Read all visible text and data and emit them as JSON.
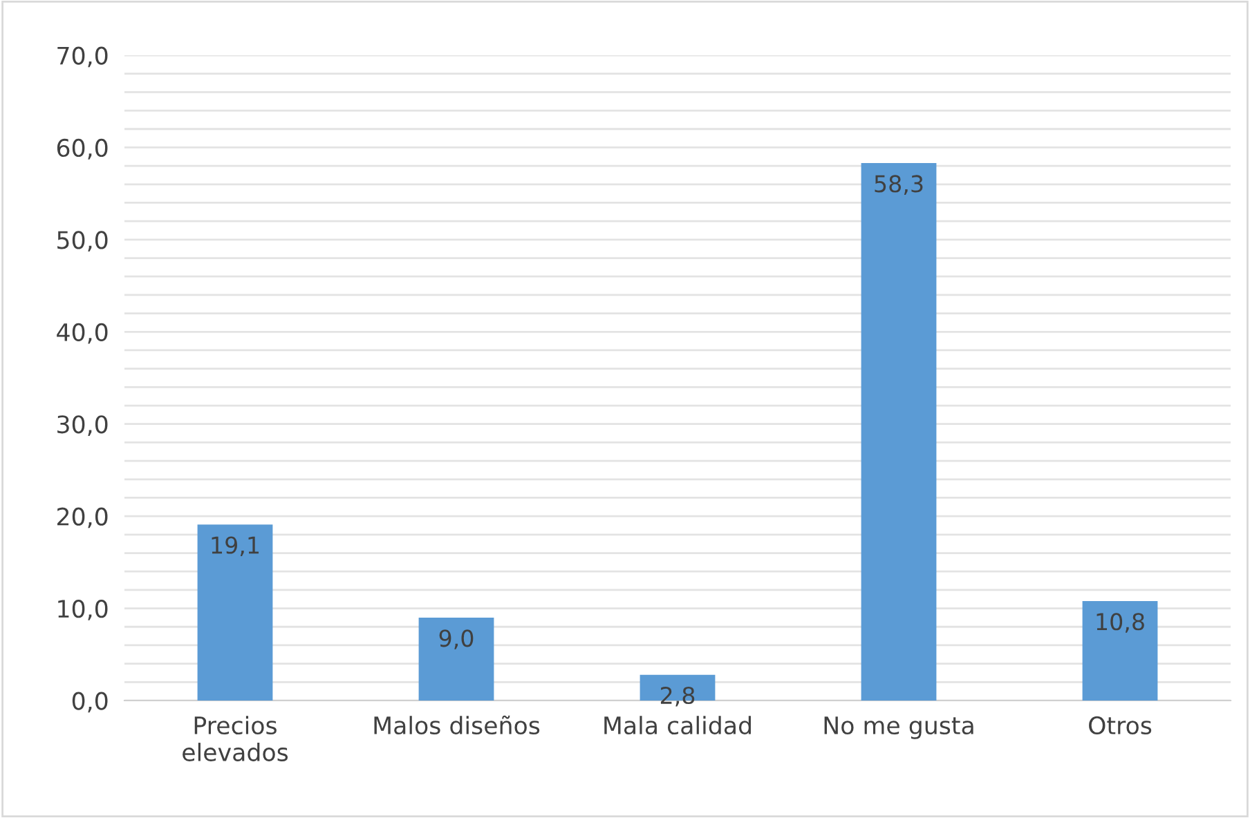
{
  "chart_data": {
    "type": "bar",
    "categories": [
      "Precios\nelevados",
      "Malos diseños",
      "Mala calidad",
      "No me gusta",
      "Otros"
    ],
    "values": [
      19.1,
      9.0,
      2.8,
      58.3,
      10.8
    ],
    "value_labels": [
      "19,1",
      "9,0",
      "2,8",
      "58,3",
      "10,8"
    ],
    "color": "#5b9bd5",
    "ylim": [
      0,
      70
    ],
    "yticks": [
      {
        "value": 0,
        "label": "0,0"
      },
      {
        "value": 2,
        "label": null
      },
      {
        "value": 4,
        "label": null
      },
      {
        "value": 6,
        "label": null
      },
      {
        "value": 8,
        "label": null
      },
      {
        "value": 10,
        "label": "10,0"
      },
      {
        "value": 12,
        "label": null
      },
      {
        "value": 14,
        "label": null
      },
      {
        "value": 16,
        "label": null
      },
      {
        "value": 18,
        "label": null
      },
      {
        "value": 20,
        "label": "20,0"
      },
      {
        "value": 22,
        "label": null
      },
      {
        "value": 24,
        "label": null
      },
      {
        "value": 26,
        "label": null
      },
      {
        "value": 28,
        "label": null
      },
      {
        "value": 30,
        "label": "30,0"
      },
      {
        "value": 32,
        "label": null
      },
      {
        "value": 34,
        "label": null
      },
      {
        "value": 36,
        "label": null
      },
      {
        "value": 38,
        "label": null
      },
      {
        "value": 40,
        "label": "40,0"
      },
      {
        "value": 42,
        "label": null
      },
      {
        "value": 44,
        "label": null
      },
      {
        "value": 46,
        "label": null
      },
      {
        "value": 48,
        "label": null
      },
      {
        "value": 50,
        "label": "50,0"
      },
      {
        "value": 52,
        "label": null
      },
      {
        "value": 54,
        "label": null
      },
      {
        "value": 56,
        "label": null
      },
      {
        "value": 58,
        "label": null
      },
      {
        "value": 60,
        "label": "60,0"
      },
      {
        "value": 62,
        "label": null
      },
      {
        "value": 64,
        "label": null
      },
      {
        "value": 66,
        "label": null
      },
      {
        "value": 68,
        "label": null
      },
      {
        "value": 70,
        "label": "70,0"
      }
    ],
    "grid": "y"
  }
}
